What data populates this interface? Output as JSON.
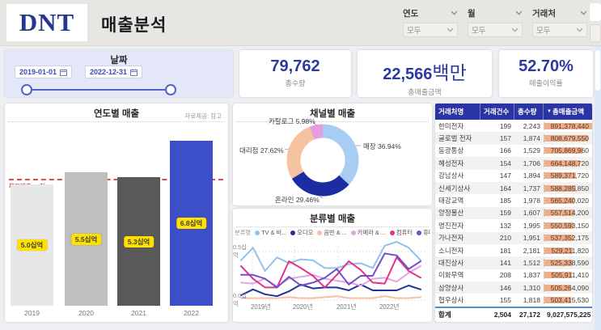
{
  "header": {
    "logo": "DNT",
    "title": "매출분석",
    "filters": [
      {
        "label": "연도",
        "value": "모두"
      },
      {
        "label": "월",
        "value": "모두"
      },
      {
        "label": "거래처",
        "value": "모두"
      }
    ]
  },
  "date_slicer": {
    "title": "날짜",
    "start": "2019-01-01",
    "end": "2022-12-31"
  },
  "kpis": [
    {
      "value": "79,762",
      "suffix": "",
      "label": "총수량"
    },
    {
      "value": "22,566",
      "suffix": "백만",
      "label": "총매출금액"
    },
    {
      "value": "52.70%",
      "suffix": "",
      "label": "매출이익률"
    }
  ],
  "colors": {
    "kpi_value": "#2c3aa0",
    "table_header_bg": "#2a35a3",
    "databar": "#f3ad85",
    "target_line": "#e04f4f",
    "label_badge_bg": "#ffe100",
    "slicer_bg": "#e3e7f7"
  },
  "chart_data": [
    {
      "type": "bar",
      "title": "연도별 매출",
      "note": "자료제공: 참고",
      "categories": [
        "2019",
        "2020",
        "2021",
        "2022"
      ],
      "values": [
        5.0,
        5.5,
        5.3,
        6.8
      ],
      "labels": [
        "5.0십억",
        "5.5십억",
        "5.3십억",
        "6.8십억"
      ],
      "unit": "십억",
      "ylim": [
        0,
        7.5
      ],
      "target": {
        "value": 5.0,
        "label": "목표매출 50억"
      },
      "bar_colors": [
        "#e7e7e7",
        "#bfbfbf",
        "#595959",
        "#3d4ec9"
      ]
    },
    {
      "type": "pie",
      "title": "채널별 매출",
      "slices": [
        {
          "label": "매장",
          "pct": 36.94,
          "color": "#a8cdf2"
        },
        {
          "label": "온라인",
          "pct": 29.46,
          "color": "#1b2da0"
        },
        {
          "label": "대리점",
          "pct": 27.62,
          "color": "#f6c3a0"
        },
        {
          "label": "카탈로그",
          "pct": 5.98,
          "color": "#e79be1"
        }
      ]
    },
    {
      "type": "line",
      "title": "분류별 매출",
      "legend_title": "분류명",
      "x_tick_labels": [
        "2019년",
        "2020년",
        "2021년",
        "2022년"
      ],
      "y_tick_labels": [
        "0.5십억",
        "0.0십억"
      ],
      "unit": "십억",
      "ylim": [
        0,
        0.65
      ],
      "x_points_per_year": 4,
      "series": [
        {
          "name": "TV & 비...",
          "color": "#92c1ea",
          "values": [
            0.41,
            0.54,
            0.3,
            0.44,
            0.38,
            0.42,
            0.41,
            0.33,
            0.33,
            0.37,
            0.38,
            0.33,
            0.56,
            0.6,
            0.54,
            0.41
          ]
        },
        {
          "name": "오디오",
          "color": "#1f3299",
          "values": [
            0.05,
            0.11,
            0.06,
            0.04,
            0.09,
            0.16,
            0.12,
            0.13,
            0.13,
            0.1,
            0.16,
            0.1,
            0.1,
            0.1,
            0.15,
            0.11
          ]
        },
        {
          "name": "음반 & ...",
          "color": "#f6bfa4",
          "values": [
            0.02,
            0.02,
            0.02,
            0.02,
            0.03,
            0.02,
            0.02,
            0.03,
            0.04,
            0.02,
            0.02,
            0.02,
            0.04,
            0.02,
            0.02,
            0.03
          ]
        },
        {
          "name": "카메라 & ...",
          "color": "#e2a4e4",
          "values": [
            0.18,
            0.17,
            0.22,
            0.14,
            0.22,
            0.24,
            0.26,
            0.22,
            0.2,
            0.18,
            0.15,
            0.22,
            0.23,
            0.19,
            0.28,
            0.35
          ]
        },
        {
          "name": "컴퓨터",
          "color": "#e0338c",
          "values": [
            0.35,
            0.22,
            0.13,
            0.13,
            0.4,
            0.33,
            0.25,
            0.13,
            0.26,
            0.4,
            0.31,
            0.18,
            0.17,
            0.44,
            0.3,
            0.23
          ]
        },
        {
          "name": "휴대폰",
          "color": "#7050c8",
          "values": [
            0.26,
            0.26,
            0.22,
            0.13,
            0.24,
            0.15,
            0.18,
            0.23,
            0.32,
            0.16,
            0.25,
            0.25,
            0.48,
            0.46,
            0.32,
            0.4
          ]
        }
      ]
    }
  ],
  "table": {
    "columns": [
      "거래처명",
      "거래건수",
      "총수량",
      "총매출금액"
    ],
    "sorted_by": "총매출금액",
    "rows": [
      [
        "한미전자",
        "199",
        "2,243",
        "891,378,440"
      ],
      [
        "글로벌 전자",
        "157",
        "1,874",
        "808,679,550"
      ],
      [
        "동광통상",
        "166",
        "1,529",
        "705,869,960"
      ],
      [
        "혜성전자",
        "154",
        "1,706",
        "664,148,720"
      ],
      [
        "강남상사",
        "147",
        "1,894",
        "589,371,720"
      ],
      [
        "신세기상사",
        "164",
        "1,737",
        "588,285,850"
      ],
      [
        "태강교역",
        "185",
        "1,978",
        "565,240,020"
      ],
      [
        "양정물산",
        "159",
        "1,607",
        "557,514,200"
      ],
      [
        "명진전자",
        "132",
        "1,995",
        "550,593,150"
      ],
      [
        "가나전자",
        "210",
        "1,951",
        "537,352,175"
      ],
      [
        "소니전자",
        "181",
        "2,181",
        "529,211,820"
      ],
      [
        "대진상사",
        "141",
        "1,512",
        "525,338,590"
      ],
      [
        "이화무역",
        "208",
        "1,837",
        "505,911,410"
      ],
      [
        "삼양상사",
        "146",
        "1,310",
        "505,264,090"
      ],
      [
        "협우상사",
        "155",
        "1,818",
        "503,415,530"
      ]
    ],
    "total": [
      "합계",
      "2,504",
      "27,172",
      "9,027,575,225"
    ]
  }
}
